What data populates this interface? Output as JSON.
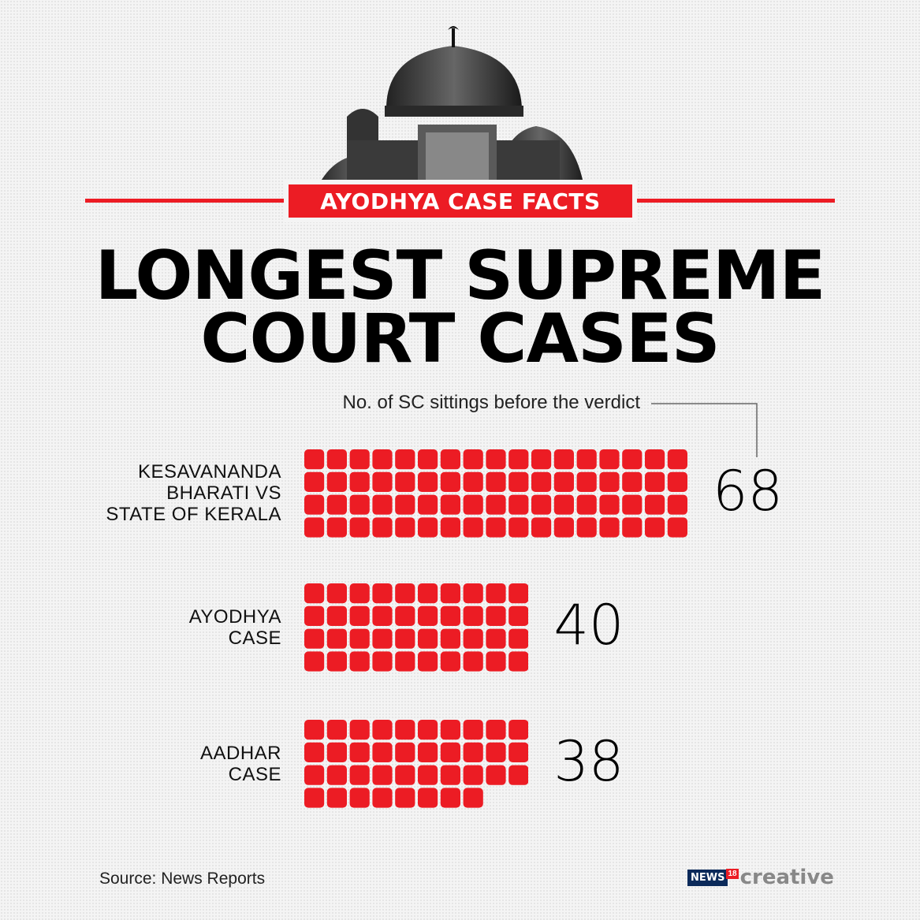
{
  "header": {
    "tag": "AYODHYA CASE FACTS",
    "title_line1": "LONGEST SUPREME",
    "title_line2": "COURT CASES"
  },
  "subtitle": "No. of SC sittings before the verdict",
  "chart_data": {
    "type": "waffle",
    "unit": "SC sittings",
    "columns": 17,
    "rows": [
      {
        "label_lines": [
          "KESAVANANDA",
          "BHARATI VS",
          "STATE OF KERALA"
        ],
        "value": 68,
        "cols": 17
      },
      {
        "label_lines": [
          "AYODHYA",
          "CASE"
        ],
        "value": 40,
        "cols": 10
      },
      {
        "label_lines": [
          "AADHAR",
          "CASE"
        ],
        "value": 38,
        "cols": 10
      }
    ],
    "colors": {
      "square": "#ec1c24"
    }
  },
  "footer": {
    "source": "Source: News Reports",
    "logo_news": "NEWS",
    "logo_18": "18",
    "logo_creative": "creative"
  },
  "colors": {
    "accent": "#ec1c24",
    "text": "#000000"
  },
  "icons": [
    "mosque-illustration"
  ]
}
